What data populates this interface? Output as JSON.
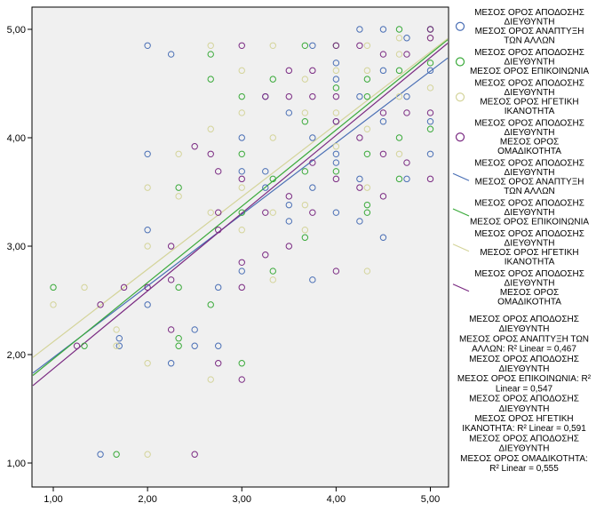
{
  "chart_data": {
    "type": "scatter",
    "title": "",
    "xlabel": "",
    "ylabel": "",
    "xlim": [
      0.8,
      5.15
    ],
    "ylim": [
      0.9,
      5.2
    ],
    "grid": false,
    "legend_position": "right",
    "x_ticks": [
      "1,00",
      "2,00",
      "3,00",
      "4,00",
      "5,00"
    ],
    "y_ticks": [
      "1,00",
      "2,00",
      "3,00",
      "4,00",
      "5,00"
    ],
    "series": [
      {
        "name": "ΜΕΣΟΣ ΟΡΟΣ ΑΠΟΔΟΣΗΣ ΔΙΕΥΘΥΝΤΗ ΜΕΣΟΣ ΟΡΟΣ ΑΝΑΠΤΥΞΗ ΤΩΝ ΑΛΛΩΝ",
        "name_lines": [
          "ΜΕΣΟΣ ΟΡΟΣ ΑΠΟΔΟΣΗΣ",
          "ΔΙΕΥΘΥΝΤΗ",
          " ΜΕΣΟΣ ΟΡΟΣ ΑΝΑΠΤΥΞΗ",
          "ΤΩΝ ΑΛΛΩΝ"
        ],
        "color": "#4a6fb5",
        "points": [
          [
            1.5,
            1.08
          ],
          [
            1.7,
            2.15
          ],
          [
            1.7,
            2.08
          ],
          [
            2.0,
            4.85
          ],
          [
            2.0,
            3.85
          ],
          [
            2.0,
            3.15
          ],
          [
            2.0,
            2.46
          ],
          [
            2.25,
            4.77
          ],
          [
            2.25,
            1.92
          ],
          [
            2.5,
            2.23
          ],
          [
            2.5,
            2.08
          ],
          [
            2.75,
            2.08
          ],
          [
            2.75,
            2.62
          ],
          [
            3.0,
            2.77
          ],
          [
            3.0,
            4.0
          ],
          [
            3.0,
            3.69
          ],
          [
            3.25,
            4.38
          ],
          [
            3.25,
            3.54
          ],
          [
            3.25,
            3.69
          ],
          [
            3.5,
            4.23
          ],
          [
            3.5,
            3.38
          ],
          [
            3.5,
            3.23
          ],
          [
            3.75,
            4.85
          ],
          [
            3.75,
            4.0
          ],
          [
            3.75,
            3.54
          ],
          [
            3.75,
            2.69
          ],
          [
            4.0,
            4.69
          ],
          [
            4.0,
            4.54
          ],
          [
            4.0,
            4.15
          ],
          [
            4.0,
            3.85
          ],
          [
            4.0,
            3.31
          ],
          [
            4.0,
            3.77
          ],
          [
            4.25,
            5.0
          ],
          [
            4.25,
            4.38
          ],
          [
            4.25,
            3.62
          ],
          [
            4.25,
            3.23
          ],
          [
            4.5,
            5.0
          ],
          [
            4.5,
            4.15
          ],
          [
            4.5,
            3.08
          ],
          [
            4.5,
            4.62
          ],
          [
            4.75,
            4.92
          ],
          [
            4.75,
            4.38
          ],
          [
            4.75,
            3.62
          ],
          [
            5.0,
            5.0
          ],
          [
            5.0,
            4.62
          ],
          [
            5.0,
            4.15
          ],
          [
            5.0,
            3.85
          ]
        ],
        "fit": {
          "intercept": 1.295,
          "slope": 0.668
        },
        "r2_lines": [
          "ΜΕΣΟΣ ΟΡΟΣ ΑΠΟΔΟΣΗΣ",
          "ΔΙΕΥΘΥΝΤΗ",
          "ΜΕΣΟΣ ΟΡΟΣ ΑΝΑΠΤΥΞΗ ΤΩΝ",
          "ΑΛΛΩΝ: R² Linear = 0,467"
        ]
      },
      {
        "name": "ΜΕΣΟΣ ΟΡΟΣ ΑΠΟΔΟΣΗΣ ΔΙΕΥΘΥΝΤΗ ΜΕΣΟΣ ΟΡΟΣ ΕΠΙΚΟΙΝΩΝΙΑ",
        "name_lines": [
          "ΜΕΣΟΣ ΟΡΟΣ ΑΠΟΔΟΣΗΣ",
          "ΔΙΕΥΘΥΝΤΗ",
          " ΜΕΣΟΣ ΟΡΟΣ ΕΠΙΚΟΙΝΩΝΙΑ"
        ],
        "color": "#3aaa3a",
        "points": [
          [
            1.0,
            2.62
          ],
          [
            1.33,
            2.08
          ],
          [
            1.67,
            1.08
          ],
          [
            2.33,
            3.54
          ],
          [
            2.33,
            2.62
          ],
          [
            2.33,
            2.15
          ],
          [
            2.33,
            2.08
          ],
          [
            2.67,
            4.77
          ],
          [
            2.67,
            4.54
          ],
          [
            2.67,
            2.46
          ],
          [
            3.0,
            4.38
          ],
          [
            3.0,
            3.85
          ],
          [
            3.0,
            3.31
          ],
          [
            3.0,
            1.92
          ],
          [
            3.33,
            4.54
          ],
          [
            3.33,
            3.62
          ],
          [
            3.33,
            2.77
          ],
          [
            3.67,
            4.85
          ],
          [
            3.67,
            4.15
          ],
          [
            3.67,
            3.69
          ],
          [
            3.67,
            3.08
          ],
          [
            4.0,
            4.85
          ],
          [
            4.0,
            4.46
          ],
          [
            4.0,
            3.69
          ],
          [
            4.33,
            4.54
          ],
          [
            4.33,
            4.38
          ],
          [
            4.33,
            3.85
          ],
          [
            4.33,
            3.38
          ],
          [
            4.33,
            3.31
          ],
          [
            4.67,
            5.0
          ],
          [
            4.67,
            4.62
          ],
          [
            4.67,
            4.0
          ],
          [
            4.67,
            3.62
          ],
          [
            5.0,
            5.0
          ],
          [
            5.0,
            4.69
          ],
          [
            5.0,
            4.08
          ]
        ],
        "fit": {
          "intercept": 1.238,
          "slope": 0.712
        },
        "r2_lines": [
          "ΜΕΣΟΣ ΟΡΟΣ ΑΠΟΔΟΣΗΣ",
          "ΔΙΕΥΘΥΝΤΗ",
          "ΜΕΣΟΣ ΟΡΟΣ ΕΠΙΚΟΙΝΩΝΙΑ: R²",
          "Linear = 0,547"
        ]
      },
      {
        "name": "ΜΕΣΟΣ ΟΡΟΣ ΑΠΟΔΟΣΗΣ ΔΙΕΥΘΥΝΤΗ ΜΕΣΟΣ ΟΡΟΣ ΗΓΕΤΙΚΗ ΙΚΑΝΟΤΗΤΑ",
        "name_lines": [
          "ΜΕΣΟΣ ΟΡΟΣ ΑΠΟΔΟΣΗΣ",
          "ΔΙΕΥΘΥΝΤΗ",
          " ΜΕΣΟΣ ΟΡΟΣ ΗΓΕΤΙΚΗ",
          "ΙΚΑΝΟΤΗΤΑ"
        ],
        "color": "#d4d49a",
        "points": [
          [
            1.0,
            2.46
          ],
          [
            1.33,
            2.62
          ],
          [
            1.67,
            2.23
          ],
          [
            1.67,
            2.08
          ],
          [
            2.0,
            3.54
          ],
          [
            2.0,
            3.0
          ],
          [
            2.0,
            1.92
          ],
          [
            2.0,
            1.08
          ],
          [
            2.33,
            3.85
          ],
          [
            2.33,
            3.46
          ],
          [
            2.67,
            4.85
          ],
          [
            2.67,
            4.08
          ],
          [
            2.67,
            3.31
          ],
          [
            2.67,
            1.77
          ],
          [
            3.0,
            4.62
          ],
          [
            3.0,
            4.23
          ],
          [
            3.0,
            3.54
          ],
          [
            3.0,
            3.15
          ],
          [
            3.33,
            4.85
          ],
          [
            3.33,
            4.0
          ],
          [
            3.33,
            3.31
          ],
          [
            3.33,
            2.69
          ],
          [
            3.67,
            4.54
          ],
          [
            3.67,
            4.23
          ],
          [
            3.67,
            3.38
          ],
          [
            3.67,
            3.15
          ],
          [
            4.0,
            4.62
          ],
          [
            4.0,
            4.23
          ],
          [
            4.0,
            3.92
          ],
          [
            4.33,
            4.85
          ],
          [
            4.33,
            4.62
          ],
          [
            4.33,
            4.08
          ],
          [
            4.33,
            3.54
          ],
          [
            4.33,
            2.77
          ],
          [
            4.67,
            4.92
          ],
          [
            4.67,
            4.77
          ],
          [
            4.67,
            4.38
          ],
          [
            4.67,
            3.85
          ],
          [
            5.0,
            4.92
          ],
          [
            5.0,
            4.46
          ]
        ],
        "fit": {
          "intercept": 1.433,
          "slope": 0.676
        },
        "r2_lines": [
          "ΜΕΣΟΣ ΟΡΟΣ ΑΠΟΔΟΣΗΣ",
          "ΔΙΕΥΘΥΝΤΗ",
          "ΜΕΣΟΣ ΟΡΟΣ ΗΓΕΤΙΚΗ",
          "ΙΚΑΝΟΤΗΤΑ: R² Linear = 0,591"
        ]
      },
      {
        "name": "ΜΕΣΟΣ ΟΡΟΣ ΑΠΟΔΟΣΗΣ ΔΙΕΥΘΥΝΤΗ ΜΕΣΟΣ ΟΡΟΣ ΟΜΑΔΙΚΟΤΗΤΑ",
        "name_lines": [
          "ΜΕΣΟΣ ΟΡΟΣ ΑΠΟΔΟΣΗΣ",
          "ΔΙΕΥΘΥΝΤΗ",
          " ΜΕΣΟΣ ΟΡΟΣ",
          "ΟΜΑΔΙΚΟΤΗΤΑ"
        ],
        "color": "#7a2a82",
        "points": [
          [
            1.25,
            2.08
          ],
          [
            1.5,
            2.46
          ],
          [
            1.75,
            2.62
          ],
          [
            2.0,
            2.62
          ],
          [
            2.25,
            3.0
          ],
          [
            2.25,
            2.23
          ],
          [
            2.25,
            2.69
          ],
          [
            2.5,
            3.92
          ],
          [
            2.5,
            1.08
          ],
          [
            2.67,
            3.85
          ],
          [
            2.75,
            3.69
          ],
          [
            2.75,
            3.31
          ],
          [
            2.75,
            3.15
          ],
          [
            2.75,
            1.92
          ],
          [
            3.0,
            4.85
          ],
          [
            3.0,
            3.62
          ],
          [
            3.0,
            2.85
          ],
          [
            3.0,
            2.62
          ],
          [
            3.0,
            1.77
          ],
          [
            3.25,
            4.38
          ],
          [
            3.25,
            3.31
          ],
          [
            3.25,
            2.92
          ],
          [
            3.5,
            4.62
          ],
          [
            3.5,
            4.38
          ],
          [
            3.5,
            3.46
          ],
          [
            3.5,
            3.0
          ],
          [
            3.75,
            4.62
          ],
          [
            3.75,
            4.38
          ],
          [
            3.75,
            3.77
          ],
          [
            3.75,
            3.31
          ],
          [
            4.0,
            4.85
          ],
          [
            4.0,
            4.38
          ],
          [
            4.0,
            4.15
          ],
          [
            4.0,
            3.62
          ],
          [
            4.0,
            2.77
          ],
          [
            4.25,
            4.85
          ],
          [
            4.25,
            4.0
          ],
          [
            4.25,
            3.54
          ],
          [
            4.5,
            4.77
          ],
          [
            4.5,
            4.23
          ],
          [
            4.5,
            3.85
          ],
          [
            4.5,
            3.46
          ],
          [
            4.75,
            4.77
          ],
          [
            4.75,
            4.23
          ],
          [
            4.75,
            3.77
          ],
          [
            5.0,
            5.0
          ],
          [
            5.0,
            4.92
          ],
          [
            5.0,
            4.23
          ],
          [
            5.0,
            3.62
          ]
        ],
        "fit": {
          "intercept": 1.133,
          "slope": 0.726
        },
        "r2_lines": [
          "ΜΕΣΟΣ ΟΡΟΣ ΑΠΟΔΟΣΗΣ",
          "ΔΙΕΥΘΥΝΤΗ",
          "ΜΕΣΟΣ ΟΡΟΣ ΟΜΑΔΙΚΟΤΗΤΑ:",
          "R² Linear = 0,555"
        ]
      }
    ]
  }
}
